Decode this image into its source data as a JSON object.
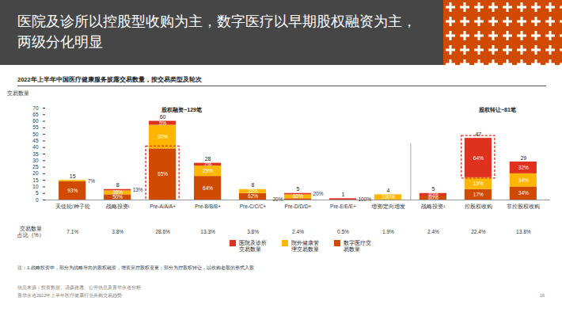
{
  "header": {
    "title": "医院及诊所以控股型收购为主，数字医疗以早期股权融资为主，两级分化明显"
  },
  "chart_data": {
    "type": "bar",
    "title": "2022年上半年中国医疗健康服务披露交易数量，按交易类型及轮次",
    "y_label": "交易数量",
    "stacked": true,
    "grid": false,
    "legend": "bottom",
    "ylim": [
      0,
      70
    ],
    "yticks": [
      0,
      5,
      10,
      15,
      20,
      25,
      30,
      35,
      40,
      45,
      50,
      55,
      60,
      65,
      70
    ],
    "categories": [
      "天使轮/种子轮",
      "战略投资¹",
      "Pre-A/A/A+",
      "Pre-B/B/B+",
      "Pre-C/C/C+",
      "Pre-D/D/D+",
      "Pre-E/E/E+",
      "增资/定向增发",
      "战略投资¹",
      "控股权收购",
      "非控股权收购"
    ],
    "series": [
      {
        "name": "医院及诊所交易数量",
        "color": "#e0301e",
        "values": [
          0,
          1,
          3,
          2,
          0,
          1,
          1,
          0,
          2,
          30,
          9
        ],
        "share_labels": [
          null,
          "13%",
          "5%",
          "7%",
          null,
          "20%",
          "100%",
          null,
          "40%",
          "64%",
          "32%"
        ]
      },
      {
        "name": "院外健康管理交易数量",
        "color": "#ffb600",
        "values": [
          1,
          3,
          18,
          8,
          3,
          3,
          0,
          4,
          0,
          9,
          10
        ],
        "share_labels": [
          "7%",
          "38%",
          "30%",
          "29%",
          "38%",
          "60%",
          null,
          "100%",
          null,
          "19%",
          "34%"
        ]
      },
      {
        "name": "数字医疗交易数量",
        "color": "#d04a02",
        "values": [
          14,
          4,
          39,
          18,
          5,
          1,
          0,
          0,
          3,
          8,
          10
        ],
        "share_labels": [
          "93%",
          "50%",
          "65%",
          "64%",
          "62%",
          "20%",
          null,
          null,
          "60%",
          "17%",
          "34%"
        ]
      }
    ],
    "totals": [
      15,
      8,
      60,
      28,
      8,
      5,
      1,
      4,
      5,
      47,
      29
    ],
    "share_row": {
      "label": "交易数量占比（%）",
      "values": [
        "7.1%",
        "3.8%",
        "28.6%",
        "13.3%",
        "3.8%",
        "2.4%",
        "0.5%",
        "1.9%",
        "2.4%",
        "22.4%",
        "13.8%"
      ]
    },
    "groups": [
      {
        "label": "股权融资~129笔",
        "span": [
          0,
          7
        ]
      },
      {
        "label": "股权转让~81笔",
        "span": [
          8,
          10
        ]
      }
    ],
    "highlighted": [
      {
        "position": 2,
        "series": "数字医疗交易数量"
      },
      {
        "position": 9,
        "series": "医院及诊所交易数量"
      }
    ]
  },
  "note": "注：1.战略投资中，部分为战略导向的股权融资，增资至控股权变更；部分为控股权转让，以收购老股的形式入股",
  "source": "信息来源：投资数据、汤森路透、公开信息及普华永道分析",
  "footer": "普华永道2022年上半年医疗健康行业并购交易趋势",
  "page": "16"
}
